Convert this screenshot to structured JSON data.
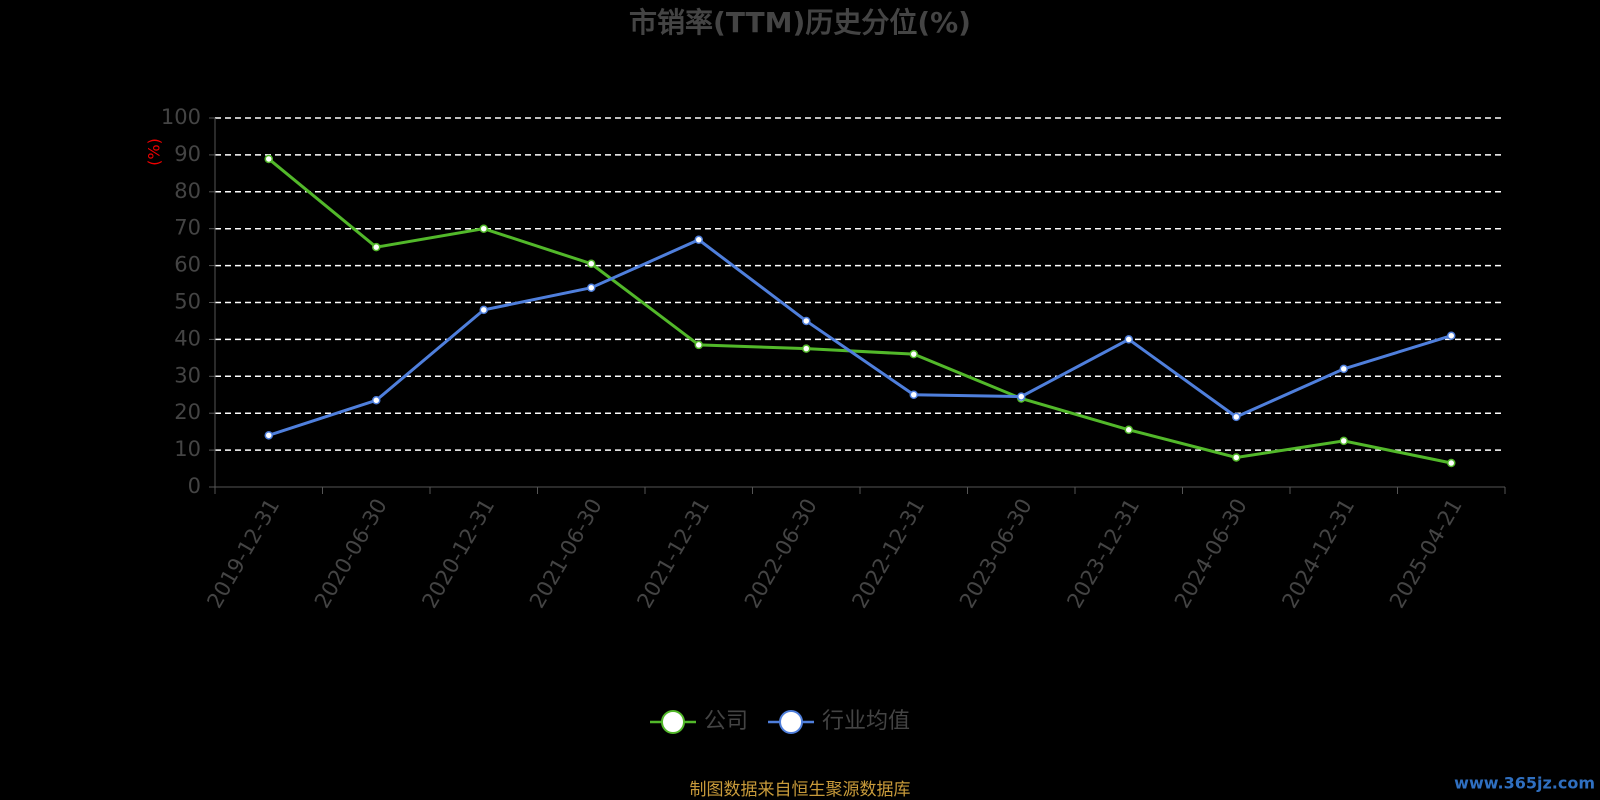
{
  "chart_data": {
    "type": "line",
    "title": "市销率(TTM)历史分位(%)",
    "y_label": "(%)",
    "categories": [
      "2019-12-31",
      "2020-06-30",
      "2020-12-31",
      "2021-06-30",
      "2021-12-31",
      "2022-06-30",
      "2022-12-31",
      "2023-06-30",
      "2023-12-31",
      "2024-06-30",
      "2024-12-31",
      "2025-04-21"
    ],
    "series": [
      {
        "name": "公司",
        "color": "#52b82a",
        "values": [
          88.9,
          65,
          70,
          60.5,
          38.5,
          37.5,
          36,
          24,
          15.5,
          8,
          12.5,
          6.5
        ]
      },
      {
        "name": "行业均值",
        "color": "#4f7fdc",
        "values": [
          14,
          23.5,
          48,
          54,
          67,
          45,
          25,
          24.5,
          40,
          19,
          32,
          41
        ]
      }
    ],
    "ylim": [
      0,
      100
    ],
    "yticks": [
      0,
      10,
      20,
      30,
      40,
      50,
      60,
      70,
      80,
      90,
      100
    ],
    "grid": true,
    "legend": "bottom",
    "source_note": "制图数据来自恒生聚源数据库",
    "watermark": "www.365jz.com"
  }
}
